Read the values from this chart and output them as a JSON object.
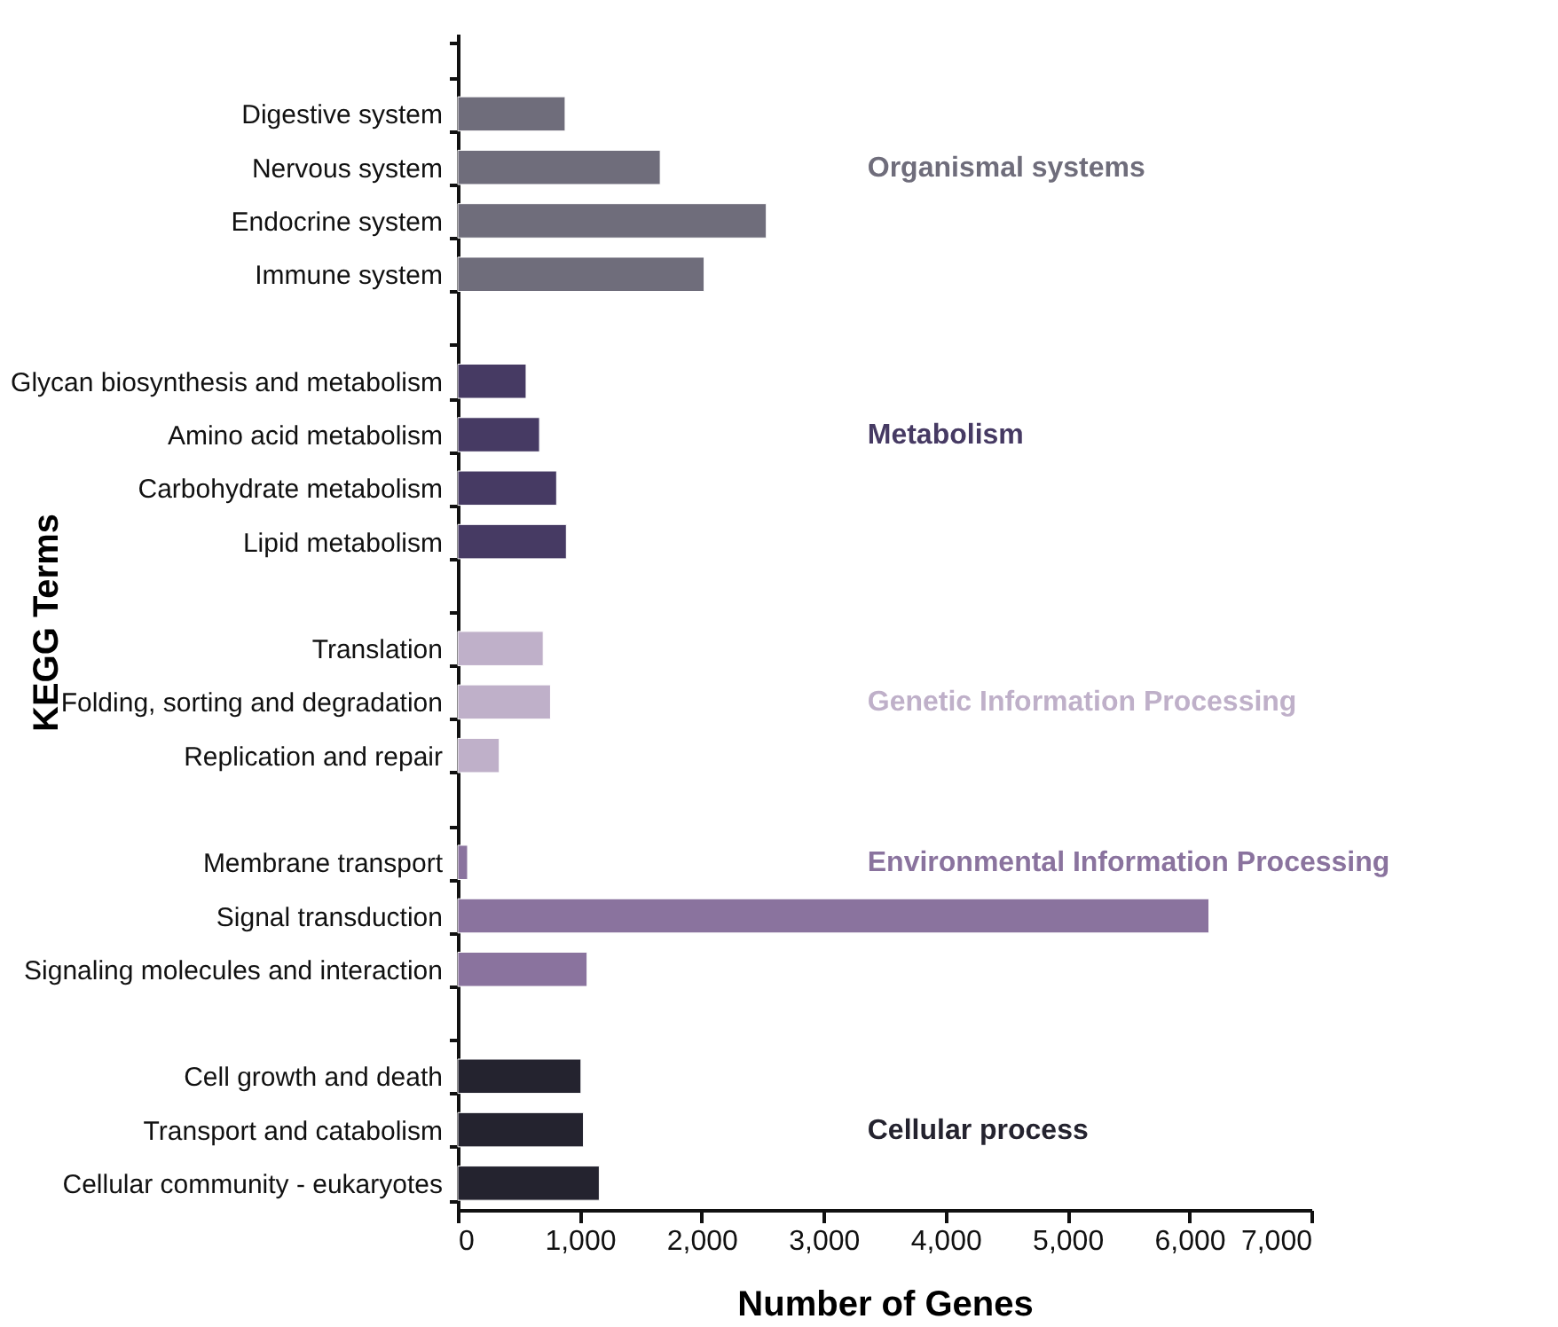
{
  "chart_data": {
    "type": "bar",
    "orientation": "horizontal",
    "xlabel": "Number of Genes",
    "ylabel": "KEGG Terms",
    "categories": [
      null,
      "Digestive system",
      "Nervous system",
      "Endocrine system",
      "Immune system",
      null,
      "Glycan biosynthesis and metabolism",
      "Amino acid metabolism",
      "Carbohydrate metabolism",
      "Lipid metabolism",
      null,
      "Translation",
      "Folding, sorting and degradation",
      "Replication and repair",
      null,
      "Membrane transport",
      "Signal transduction",
      "Signaling molecules and interaction",
      null,
      "Cell growth and death",
      "Transport and catabolism",
      "Cellular community - eukaryotes"
    ],
    "series": [
      {
        "name": "Organismal systems",
        "color": "#6f6d7b",
        "values": [
          null,
          880,
          1660,
          2530,
          2020,
          null,
          null,
          null,
          null,
          null,
          null,
          null,
          null,
          null,
          null,
          null,
          null,
          null,
          null,
          null,
          null,
          null
        ]
      },
      {
        "name": "Metabolism",
        "color": "#463a63",
        "values": [
          null,
          null,
          null,
          null,
          null,
          null,
          560,
          670,
          810,
          890,
          null,
          null,
          null,
          null,
          null,
          null,
          null,
          null,
          null,
          null,
          null,
          null
        ]
      },
      {
        "name": "Genetic Information Processing",
        "color": "#bfb0c9",
        "values": [
          null,
          null,
          null,
          null,
          null,
          null,
          null,
          null,
          null,
          null,
          null,
          700,
          760,
          340,
          null,
          null,
          null,
          null,
          null,
          null,
          null,
          null
        ]
      },
      {
        "name": "Environmental Information Processing",
        "color": "#8a739e",
        "values": [
          null,
          null,
          null,
          null,
          null,
          null,
          null,
          null,
          null,
          null,
          null,
          null,
          null,
          null,
          null,
          80,
          6160,
          1060,
          null,
          null,
          null,
          null
        ]
      },
      {
        "name": "Cellular process",
        "color": "#24232f",
        "values": [
          null,
          null,
          null,
          null,
          null,
          null,
          null,
          null,
          null,
          null,
          null,
          null,
          null,
          null,
          null,
          null,
          null,
          null,
          null,
          1010,
          1030,
          1160
        ]
      }
    ],
    "xlim": [
      0,
      7000
    ],
    "xticks": [
      0,
      {
        "value": 1000,
        "label": "1,000"
      },
      {
        "value": 2000,
        "label": "2,000"
      },
      {
        "value": 3000,
        "label": "3,000"
      },
      {
        "value": 4000,
        "label": "4,000"
      },
      {
        "value": 5000,
        "label": "5,000"
      },
      {
        "value": 6000,
        "label": "6,000"
      },
      {
        "value": 7000,
        "label": "7,000"
      }
    ],
    "grid": false,
    "legend": false
  }
}
